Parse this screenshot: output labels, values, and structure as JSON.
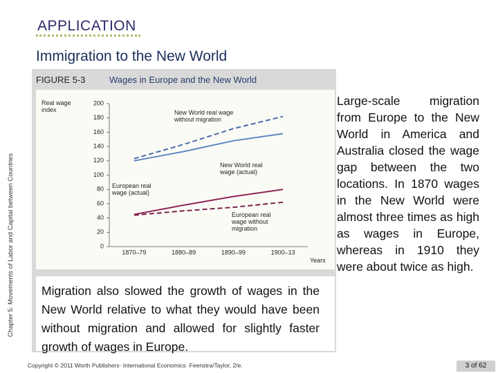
{
  "header": {
    "label": "APPLICATION",
    "title": "Immigration to the New World"
  },
  "sidebar": "Chapter 5: Movements of Labor and Capital between Countries",
  "figure": {
    "number": "FIGURE 5-3",
    "caption": "Wages in Europe and the New World"
  },
  "chart_data": {
    "type": "line",
    "y_label": "Real wage index",
    "x_label": "Years",
    "categories": [
      "1870–79",
      "1880–89",
      "1890–99",
      "1900–13"
    ],
    "ylim": [
      0,
      200
    ],
    "yticks": [
      0,
      20,
      40,
      60,
      80,
      100,
      120,
      140,
      160,
      180,
      200
    ],
    "series": [
      {
        "name": "New World real wage without migration",
        "color": "#4a6aa8",
        "dashed": true,
        "values": [
          123,
          143,
          165,
          182
        ]
      },
      {
        "name": "New World real wage (actual)",
        "color": "#5f86c0",
        "dashed": false,
        "values": [
          120,
          133,
          148,
          158
        ]
      },
      {
        "name": "European real wage (actual)",
        "color": "#8e2454",
        "dashed": false,
        "values": [
          45,
          58,
          70,
          80
        ]
      },
      {
        "name": "European real wage without migration",
        "color": "#7a1f4a",
        "dashed": true,
        "values": [
          44,
          50,
          55,
          62
        ]
      }
    ]
  },
  "body_text": "Migration also slowed the growth of wages in the New World relative to what they would have been without migration and allowed for slightly faster growth of wages in Europe.",
  "side_text": "Large-scale migration from Europe to the New World in America and Australia closed the wage gap between the two locations. In 1870 wages in the New World were almost three times as high as wages in Europe, whereas in 1910 they were about twice as high.",
  "footer": {
    "copyright": "Copyright © 2011 Worth Publishers· International Economics· Feenstra/Taylor, 2/e.",
    "page": "3 of 62"
  }
}
